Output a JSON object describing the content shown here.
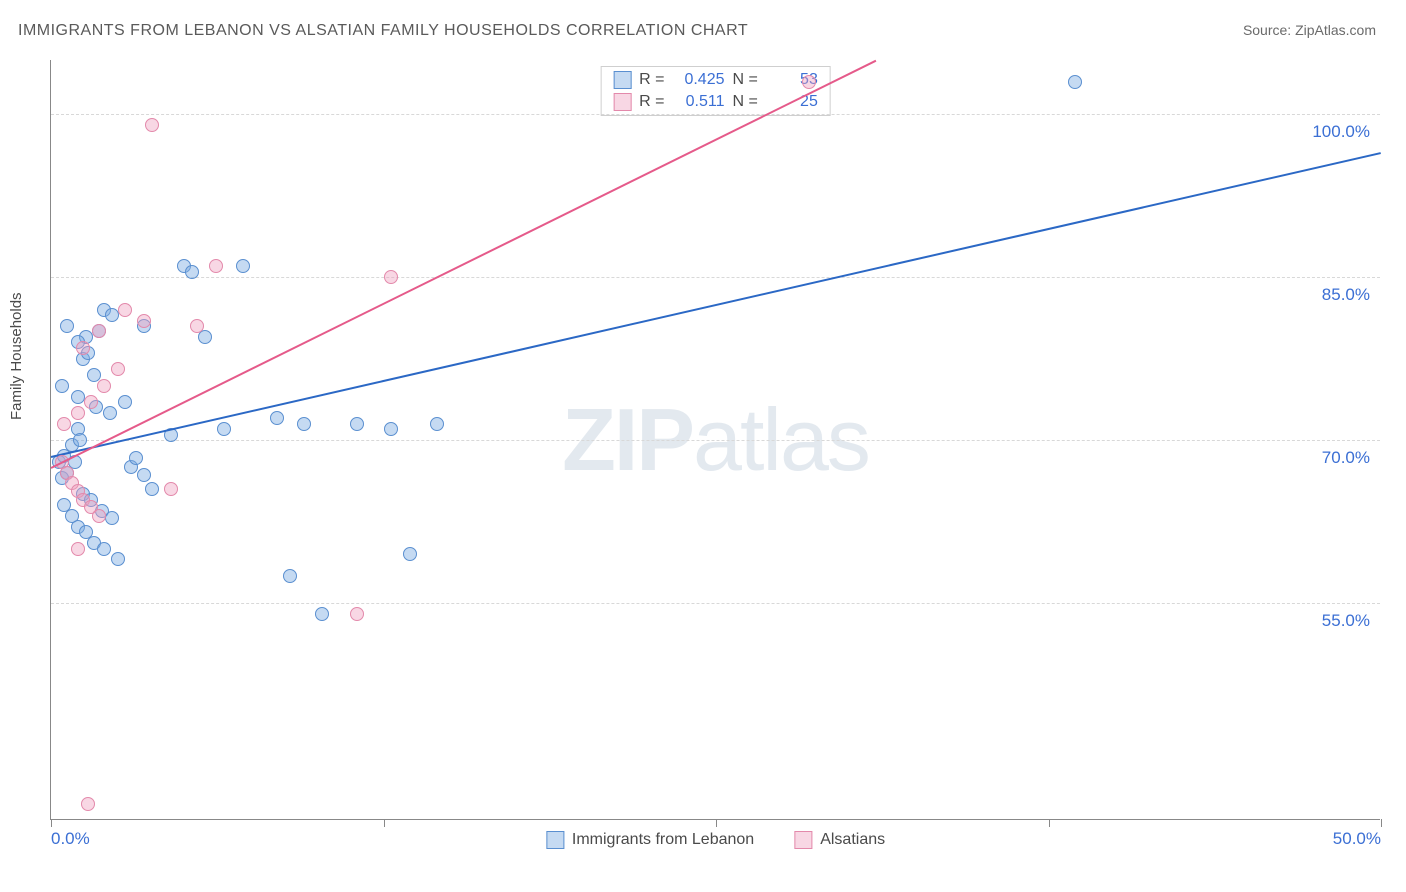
{
  "title": "IMMIGRANTS FROM LEBANON VS ALSATIAN FAMILY HOUSEHOLDS CORRELATION CHART",
  "source_label": "Source: ZipAtlas.com",
  "ylabel": "Family Households",
  "watermark_a": "ZIP",
  "watermark_b": "atlas",
  "chart": {
    "type": "scatter",
    "xlim": [
      0,
      50
    ],
    "ylim": [
      35,
      105
    ],
    "x_ticks": [
      0,
      12.5,
      25,
      37.5,
      50
    ],
    "x_tick_labels": {
      "0": "0.0%",
      "50": "50.0%"
    },
    "y_gridlines": [
      55,
      70,
      85,
      100
    ],
    "y_tick_labels": {
      "55": "55.0%",
      "70": "70.0%",
      "85": "85.0%",
      "100": "100.0%"
    },
    "grid_color": "#d8d8d8",
    "background_color": "#ffffff",
    "axis_color": "#888888"
  },
  "series": [
    {
      "name": "Immigrants from Lebanon",
      "fill": "rgba(127,174,226,0.45)",
      "stroke": "#5a8fd0",
      "line_color": "#2b68c5",
      "marker_radius": 7,
      "R": "0.425",
      "N": "53",
      "trend": {
        "x1": 0,
        "y1": 68.5,
        "x2": 50,
        "y2": 96.5
      },
      "points": [
        [
          0.3,
          68
        ],
        [
          0.4,
          66.5
        ],
        [
          0.5,
          68.5
        ],
        [
          0.6,
          67
        ],
        [
          0.8,
          69.5
        ],
        [
          0.9,
          68
        ],
        [
          1.0,
          71
        ],
        [
          1.1,
          70
        ],
        [
          1.2,
          77.5
        ],
        [
          1.3,
          79.5
        ],
        [
          1.4,
          78
        ],
        [
          1.6,
          76
        ],
        [
          1.8,
          80
        ],
        [
          2.0,
          82
        ],
        [
          2.3,
          81.5
        ],
        [
          0.5,
          64
        ],
        [
          0.8,
          63
        ],
        [
          1.0,
          62
        ],
        [
          1.3,
          61.5
        ],
        [
          1.6,
          60.5
        ],
        [
          2.0,
          60
        ],
        [
          2.5,
          59
        ],
        [
          1.2,
          65
        ],
        [
          1.5,
          64.5
        ],
        [
          1.9,
          63.5
        ],
        [
          2.3,
          62.8
        ],
        [
          3.0,
          67.5
        ],
        [
          3.2,
          68.3
        ],
        [
          3.5,
          66.8
        ],
        [
          3.8,
          65.5
        ],
        [
          4.5,
          70.5
        ],
        [
          5.0,
          86
        ],
        [
          5.3,
          85.5
        ],
        [
          5.8,
          79.5
        ],
        [
          6.5,
          71
        ],
        [
          7.2,
          86
        ],
        [
          8.5,
          72
        ],
        [
          9.0,
          57.5
        ],
        [
          9.5,
          71.5
        ],
        [
          10.2,
          54
        ],
        [
          11.5,
          71.5
        ],
        [
          12.8,
          71
        ],
        [
          13.5,
          59.5
        ],
        [
          14.5,
          71.5
        ],
        [
          2.2,
          72.5
        ],
        [
          2.8,
          73.5
        ],
        [
          1.0,
          74
        ],
        [
          0.4,
          75
        ],
        [
          1.7,
          73
        ],
        [
          1.0,
          79
        ],
        [
          0.6,
          80.5
        ],
        [
          3.5,
          80.5
        ],
        [
          38.5,
          103
        ]
      ]
    },
    {
      "name": "Alsatians",
      "fill": "rgba(238,160,190,0.42)",
      "stroke": "#e389ab",
      "line_color": "#e55a8a",
      "marker_radius": 7,
      "R": "0.511",
      "N": "25",
      "trend": {
        "x1": 0,
        "y1": 67.5,
        "x2": 31,
        "y2": 105
      },
      "points": [
        [
          0.4,
          68
        ],
        [
          0.6,
          67
        ],
        [
          0.8,
          66
        ],
        [
          1.0,
          65.3
        ],
        [
          1.2,
          64.5
        ],
        [
          1.5,
          63.8
        ],
        [
          1.8,
          63
        ],
        [
          0.5,
          71.5
        ],
        [
          1.0,
          72.5
        ],
        [
          1.5,
          73.5
        ],
        [
          2.0,
          75
        ],
        [
          2.5,
          76.5
        ],
        [
          1.2,
          78.5
        ],
        [
          1.8,
          80
        ],
        [
          2.8,
          82
        ],
        [
          3.5,
          81
        ],
        [
          4.5,
          65.5
        ],
        [
          5.5,
          80.5
        ],
        [
          6.2,
          86
        ],
        [
          3.8,
          99
        ],
        [
          11.5,
          54
        ],
        [
          12.8,
          85
        ],
        [
          1.4,
          36.5
        ],
        [
          1.0,
          60
        ],
        [
          28.5,
          103
        ]
      ]
    }
  ],
  "legend": {
    "series1_label": "Immigrants from Lebanon",
    "series2_label": "Alsatians"
  },
  "stats_labels": {
    "r": "R =",
    "n": "N ="
  }
}
